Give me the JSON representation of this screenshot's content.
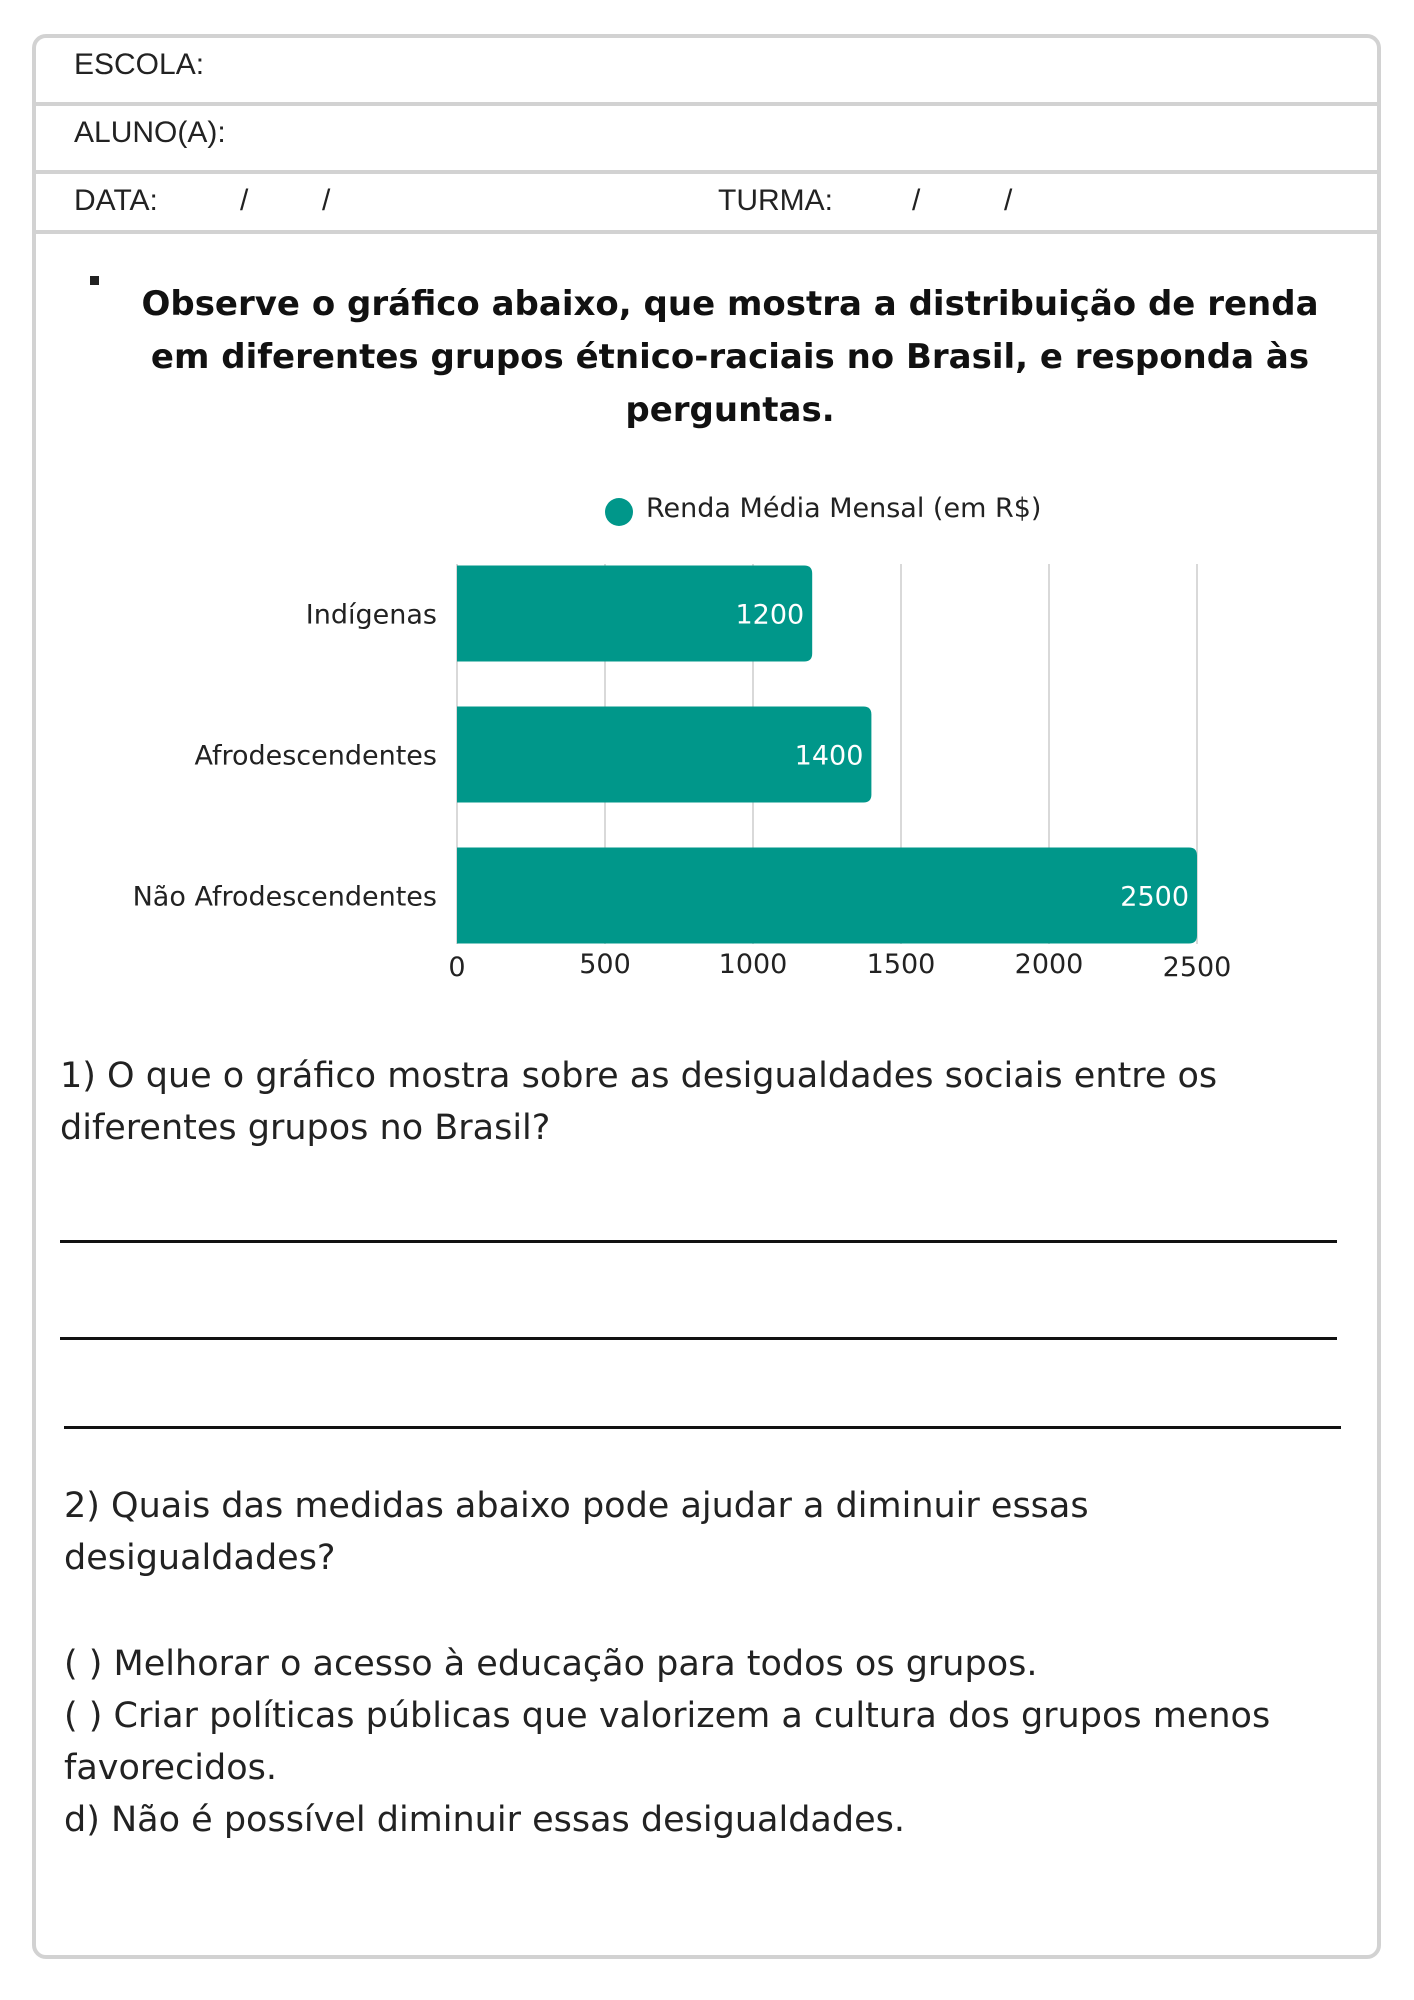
{
  "header": {
    "school_label": "ESCOLA:",
    "student_label": "ALUNO(A):",
    "date_label": "DATA:",
    "date_slash_1": "/",
    "date_slash_2": "/",
    "class_label": "TURMA:",
    "class_slash_1": "/",
    "class_slash_2": "/"
  },
  "instruction": "Observe o gráfico abaixo, que mostra a distribuição de renda em diferentes grupos étnico-raciais no Brasil, e responda às perguntas.",
  "chart_data": {
    "type": "bar",
    "orientation": "horizontal",
    "categories": [
      "Indígenas",
      "Afrodescendentes",
      "Não Afrodescendentes"
    ],
    "series": [
      {
        "name": "Renda Média Mensal (em R$)",
        "values": [
          1200,
          1400,
          2500
        ]
      }
    ],
    "x_ticks": [
      "0",
      "500",
      "1000",
      "1500",
      "2000",
      "2500"
    ],
    "xlim": [
      0,
      2500
    ],
    "grid": "vertical",
    "legend": "top",
    "color": "#00978a"
  },
  "questions": {
    "q1": "1) O que o gráfico mostra sobre as desigualdades sociais entre os diferentes grupos no Brasil?",
    "q2": "2) Quais das medidas abaixo pode ajudar a diminuir essas desigualdades?"
  },
  "options": [
    "(     ) Melhorar o acesso à educação para todos os grupos.",
    "(     ) Criar políticas públicas que valorizem a cultura dos grupos menos favorecidos.",
    "d) Não é possível diminuir essas desigualdades."
  ]
}
